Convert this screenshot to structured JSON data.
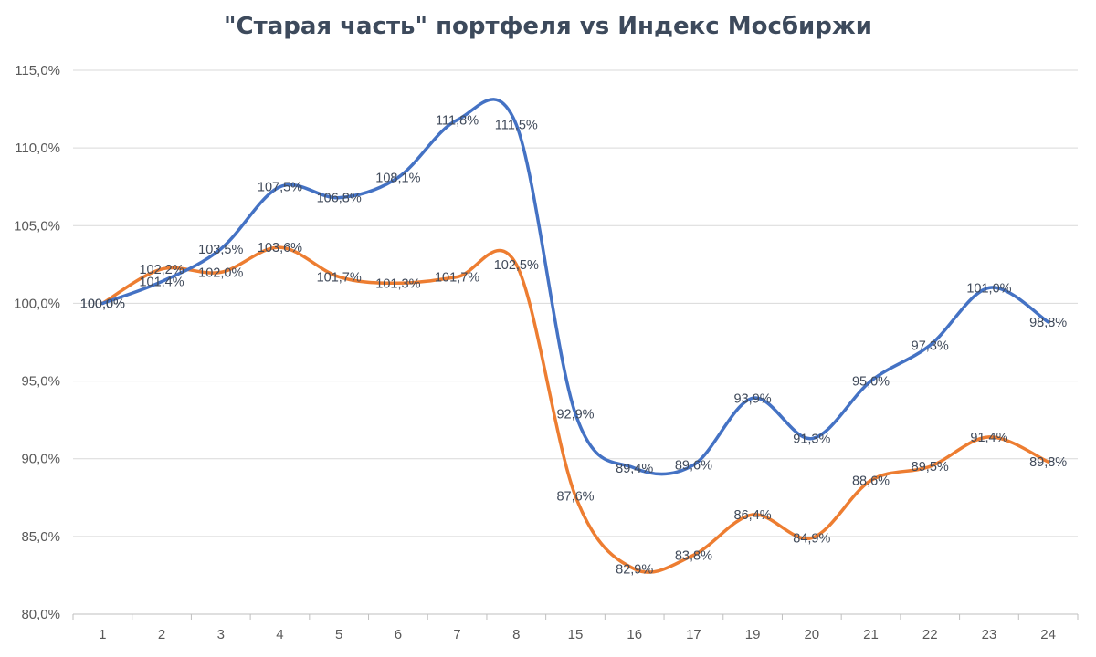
{
  "chart_data": {
    "type": "line",
    "title": "\"Старая часть\" портфеля vs Индекс Мосбиржи",
    "xlabel": "",
    "ylabel": "",
    "categories": [
      "1",
      "2",
      "3",
      "4",
      "5",
      "6",
      "7",
      "8",
      "15",
      "16",
      "17",
      "19",
      "20",
      "21",
      "22",
      "23",
      "24"
    ],
    "y_ticks": [
      "80,0%",
      "85,0%",
      "90,0%",
      "95,0%",
      "100,0%",
      "105,0%",
      "110,0%",
      "115,0%"
    ],
    "ylim": [
      80,
      115
    ],
    "grid": true,
    "legend": "none",
    "series": [
      {
        "color": "#4472c4",
        "values": [
          100.0,
          101.4,
          103.5,
          107.5,
          106.8,
          108.1,
          111.8,
          111.5,
          92.9,
          89.4,
          89.6,
          93.9,
          91.3,
          95.0,
          97.3,
          101.0,
          98.8
        ],
        "labels": [
          "100,0%",
          "101,4%",
          "103,5%",
          "107,5%",
          "106,8%",
          "108,1%",
          "111,8%",
          "111,5%",
          "92,9%",
          "89,4%",
          "89,6%",
          "93,9%",
          "91,3%",
          "95,0%",
          "97,3%",
          "101,0%",
          "98,8%"
        ]
      },
      {
        "color": "#ed7d31",
        "values": [
          100.0,
          102.2,
          102.0,
          103.6,
          101.7,
          101.3,
          101.7,
          102.5,
          87.6,
          82.9,
          83.8,
          86.4,
          84.9,
          88.6,
          89.5,
          91.4,
          89.8
        ],
        "labels": [
          "100,0%",
          "102,2%",
          "102,0%",
          "103,6%",
          "101,7%",
          "101,3%",
          "101,7%",
          "102,5%",
          "87,6%",
          "82,9%",
          "83,8%",
          "86,4%",
          "84,9%",
          "88,6%",
          "89,5%",
          "91,4%",
          "89,8%"
        ]
      }
    ]
  }
}
